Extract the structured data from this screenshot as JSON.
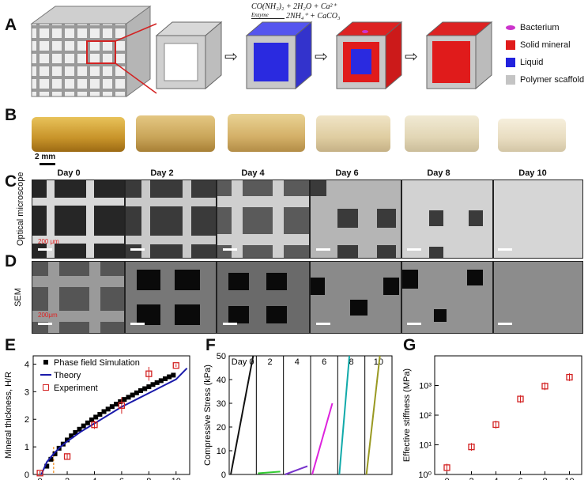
{
  "panels": {
    "A": "A",
    "B": "B",
    "C": "C",
    "D": "D",
    "E": "E",
    "F": "F",
    "G": "G"
  },
  "reaction": {
    "line1": "CO(NH₂)₂ + 2H₂O + Ca²⁺",
    "enzyme": "Enzyme",
    "line2": "2NH₄⁺ + CaCO₃"
  },
  "legend": [
    {
      "label": "Bacterium",
      "color": "#cc33cc"
    },
    {
      "label": "Solid mineral",
      "color": "#e01b1b"
    },
    {
      "label": "Liquid",
      "color": "#2222dd"
    },
    {
      "label": "Polymer scaffold",
      "color": "#c4c4c4"
    }
  ],
  "scale_B": "2 mm",
  "days": [
    "Day 0",
    "Day 2",
    "Day 4",
    "Day 6",
    "Day 8",
    "Day 10"
  ],
  "row_C_label": "Optical microscope",
  "row_C_scale": "200 μm",
  "row_D_label": "SEM",
  "row_D_scale": "200μm",
  "chart_data": [
    {
      "type": "scatter",
      "panel": "E",
      "ylabel": "Mineral thickness, H/R",
      "xlim": [
        -0.5,
        11
      ],
      "ylim": [
        0,
        4.3
      ],
      "xticks": [
        0,
        2,
        4,
        6,
        8,
        10
      ],
      "yticks": [
        0,
        1,
        2,
        3,
        4
      ],
      "series": [
        {
          "name": "Phase field Simulation",
          "type": "scatter",
          "x": [
            0.5,
            0.8,
            1.1,
            1.4,
            1.7,
            2.0,
            2.3,
            2.6,
            2.9,
            3.2,
            3.5,
            3.8,
            4.1,
            4.4,
            4.7,
            5.0,
            5.3,
            5.6,
            5.9,
            6.2,
            6.5,
            6.8,
            7.1,
            7.4,
            7.7,
            8.0,
            8.3,
            8.6,
            8.9,
            9.2,
            9.5,
            9.8
          ],
          "y": [
            0.3,
            0.55,
            0.75,
            0.95,
            1.1,
            1.25,
            1.4,
            1.52,
            1.64,
            1.76,
            1.87,
            1.98,
            2.08,
            2.18,
            2.28,
            2.37,
            2.46,
            2.55,
            2.64,
            2.72,
            2.8,
            2.88,
            2.96,
            3.04,
            3.11,
            3.18,
            3.26,
            3.33,
            3.4,
            3.47,
            3.54,
            3.6
          ]
        },
        {
          "name": "Theory",
          "type": "line",
          "x": [
            0.1,
            0.5,
            1,
            1.5,
            2,
            3,
            4,
            5,
            6,
            7,
            8,
            9,
            10,
            10.8
          ],
          "y": [
            0.0,
            0.45,
            0.75,
            1.0,
            1.2,
            1.55,
            1.85,
            2.15,
            2.45,
            2.7,
            2.95,
            3.2,
            3.45,
            3.85
          ]
        },
        {
          "name": "Experiment",
          "type": "scatter",
          "x": [
            0,
            2,
            4,
            6,
            8,
            10
          ],
          "y": [
            0.05,
            0.65,
            1.8,
            2.5,
            3.65,
            3.95
          ],
          "err": [
            0.05,
            0.1,
            0.15,
            0.3,
            0.25,
            0.05
          ]
        }
      ]
    },
    {
      "type": "line",
      "panel": "F",
      "ylabel": "Compressive Stress (kPa)",
      "ylim": [
        0,
        50
      ],
      "yticks": [
        0,
        10,
        20,
        30,
        40,
        50
      ],
      "categories": [
        "Day 0",
        "2",
        "4",
        "6",
        "8",
        "10"
      ],
      "series": [
        {
          "name": "Day 0",
          "color": "#111111",
          "x": [
            0,
            1
          ],
          "y": [
            0,
            50
          ]
        },
        {
          "name": "2",
          "color": "#33cc33",
          "x": [
            0,
            1
          ],
          "y": [
            0.5,
            1.2
          ]
        },
        {
          "name": "4",
          "color": "#7733cc",
          "x": [
            0,
            1
          ],
          "y": [
            0,
            3.5
          ]
        },
        {
          "name": "6",
          "color": "#dd22dd",
          "x": [
            0,
            0.9
          ],
          "y": [
            0,
            30
          ]
        },
        {
          "name": "8",
          "color": "#11aaaa",
          "x": [
            0,
            0.45
          ],
          "y": [
            0,
            50
          ]
        },
        {
          "name": "10",
          "color": "#999922",
          "x": [
            0,
            0.6
          ],
          "y": [
            0,
            50
          ]
        }
      ]
    },
    {
      "type": "scatter",
      "panel": "G",
      "ylabel": "Effective stiffness (MPa)",
      "yscale": "log",
      "ylim": [
        1,
        10000
      ],
      "yticks": [
        "10⁰",
        "10¹",
        "10²",
        "10³"
      ],
      "xticks": [
        0,
        2,
        4,
        6,
        8,
        10
      ],
      "x": [
        0,
        2,
        4,
        6,
        8,
        10
      ],
      "y": [
        1.7,
        8.5,
        48,
        350,
        950,
        1900
      ]
    }
  ]
}
